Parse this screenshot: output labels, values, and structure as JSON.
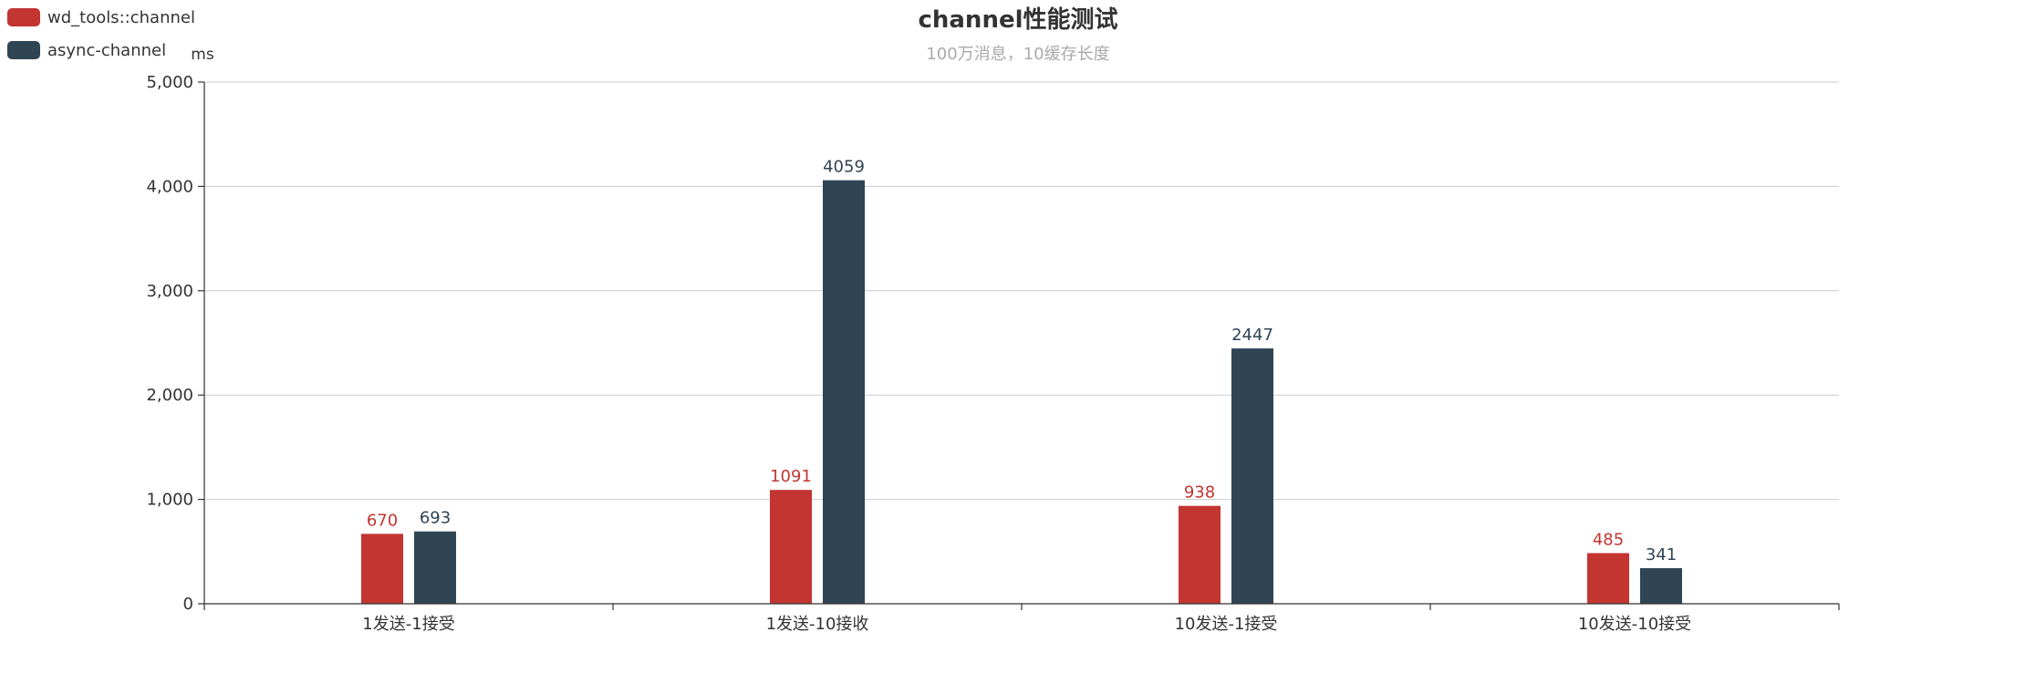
{
  "chart_data": {
    "type": "bar",
    "title": "channel性能测试",
    "subtitle": "100万消息，10缓存长度",
    "ylabel": "ms",
    "xlabel": "",
    "ylim": [
      0,
      5000
    ],
    "yticks": [
      "0",
      "1,000",
      "2,000",
      "3,000",
      "4,000",
      "5,000"
    ],
    "ytick_values": [
      0,
      1000,
      2000,
      3000,
      4000,
      5000
    ],
    "categories": [
      "1发送-1接受",
      "1发送-10接收",
      "10发送-1接受",
      "10发送-10接受"
    ],
    "series": [
      {
        "name": "wd_tools::channel",
        "color": "#c23531",
        "values": [
          670,
          1091,
          938,
          485
        ]
      },
      {
        "name": "async-channel",
        "color": "#2f4554",
        "values": [
          693,
          4059,
          2447,
          341
        ]
      }
    ],
    "grid": true,
    "legend_position": "top-left"
  }
}
